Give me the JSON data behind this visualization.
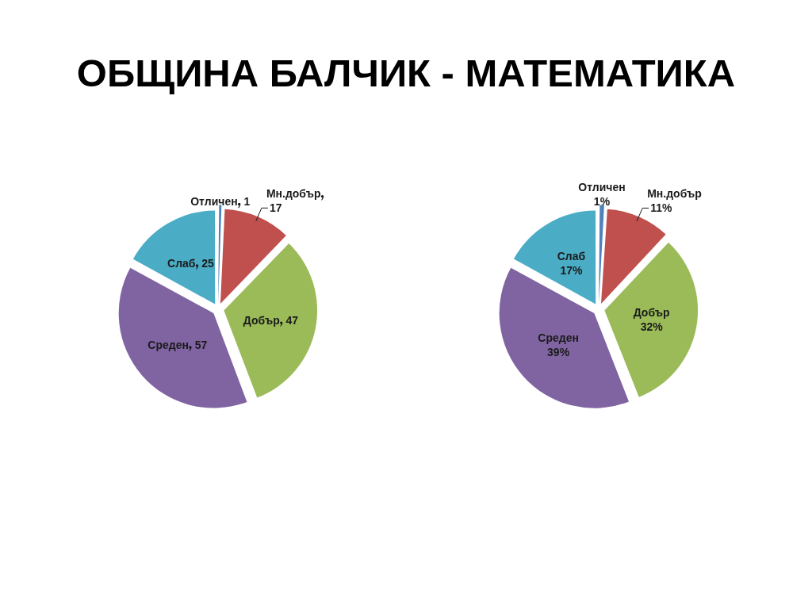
{
  "chart_data": [
    {
      "type": "pie",
      "title": "ОБЩИНА БАЛЧИК - МАТЕМАТИКА",
      "categories": [
        "Отличен",
        "Мн.добър",
        "Добър",
        "Среден",
        "Слаб"
      ],
      "values": [
        1,
        17,
        47,
        57,
        25
      ],
      "colors": [
        "#4f81bd",
        "#c0504d",
        "#9bbb59",
        "#8064a2",
        "#4bacc6"
      ],
      "data_labels": true
    },
    {
      "type": "pie",
      "categories": [
        "Отличен",
        "Мн.добър",
        "Добър",
        "Среден",
        "Слаб"
      ],
      "values": [
        1,
        11,
        32,
        39,
        17
      ],
      "colors": [
        "#4f81bd",
        "#c0504d",
        "#9bbb59",
        "#8064a2",
        "#4bacc6"
      ],
      "value_labels": [
        "1%",
        "11%",
        "32%",
        "39%",
        "17%"
      ]
    }
  ]
}
